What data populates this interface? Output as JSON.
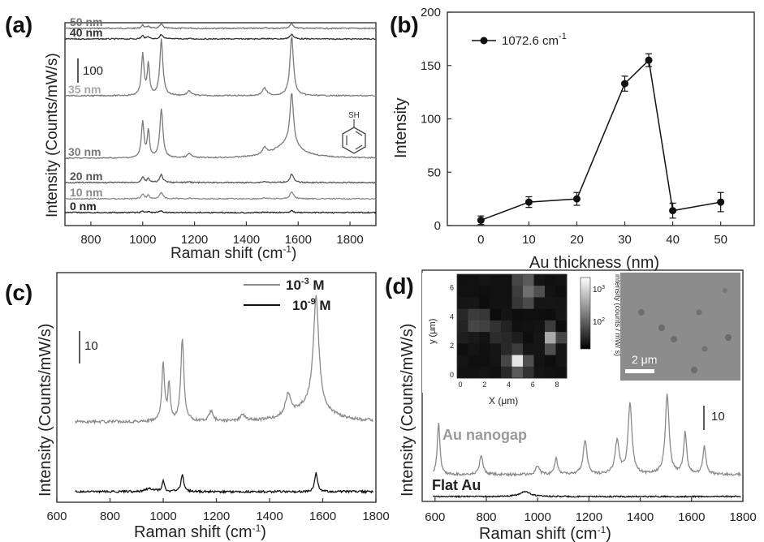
{
  "chart_data": [
    {
      "panel": "(a)",
      "type": "line",
      "xlabel": "Raman shift (cm",
      "xlabel_sup": "-1",
      "xlabel_end": ")",
      "ylabel": "Intensity (Counts/mW/s)",
      "xlim": [
        700,
        1900
      ],
      "xticks": [
        "800",
        "1000",
        "1200",
        "1400",
        "1600",
        "1800"
      ],
      "scalebar_label": "100",
      "molecule_label": "SH",
      "series": [
        {
          "name": "50 nm",
          "color": "#707070",
          "scale": 0.08
        },
        {
          "name": "40 nm",
          "color": "#333333",
          "scale": 0.08
        },
        {
          "name": "35 nm",
          "color": "#7a7a7a",
          "label_color": "#a8a8a8",
          "scale": 1.0
        },
        {
          "name": "30 nm",
          "color": "#7a7a7a",
          "scale": 0.88
        },
        {
          "name": "20 nm",
          "color": "#555555",
          "scale": 0.14
        },
        {
          "name": "10 nm",
          "color": "#8a8a8a",
          "scale": 0.12
        },
        {
          "name": "0 nm",
          "color": "#222222",
          "scale": 0.03
        }
      ]
    },
    {
      "panel": "(b)",
      "type": "line",
      "xlabel": "Au thickness (nm)",
      "ylabel": "Intensity",
      "ylim": [
        0,
        200
      ],
      "xlim": [
        -7,
        57
      ],
      "xticks": [
        0,
        10,
        20,
        30,
        40,
        50
      ],
      "yticks": [
        0,
        50,
        100,
        150,
        200
      ],
      "legend": "1072.6 cm",
      "legend_sup": "-1",
      "x": [
        0,
        10,
        20,
        30,
        35,
        40,
        50
      ],
      "y": [
        5,
        22,
        25,
        133,
        155,
        14,
        22
      ],
      "err": [
        4,
        5,
        6,
        7,
        6,
        7,
        9
      ]
    },
    {
      "panel": "(c)",
      "type": "line",
      "xlabel": "Raman shift (cm",
      "xlabel_sup": "-1",
      "xlabel_end": ")",
      "ylabel": "Intensity (Counts/mW/s)",
      "xlim": [
        600,
        1800
      ],
      "xticks": [
        "600",
        "800",
        "1000",
        "1200",
        "1400",
        "1600",
        "1800"
      ],
      "scalebar_label": "10",
      "series": [
        {
          "name": "10",
          "name_sup": "-3",
          "name_end": " M",
          "color": "#8a8a8a"
        },
        {
          "name": "10",
          "name_sup": "-9",
          "name_end": " M",
          "color": "#111111"
        }
      ]
    },
    {
      "panel": "(d)",
      "type": "line",
      "xlabel": "Raman shift (cm",
      "xlabel_sup": "-1",
      "xlabel_end": ")",
      "ylabel": "Intensity (Counts/mW/s)",
      "xlim": [
        550,
        1800
      ],
      "xticks": [
        "600",
        "800",
        "1000",
        "1200",
        "1400",
        "1600",
        "1800"
      ],
      "scalebar_label": "10",
      "series": [
        {
          "name": "Au nanogap",
          "color": "#8a8a8a"
        },
        {
          "name": "Flat Au",
          "color": "#111111"
        }
      ],
      "inset_map": {
        "xlabel": "X (μm)",
        "ylabel": "y (μm)",
        "xticks": [
          "0",
          "2",
          "4",
          "6",
          "8"
        ],
        "yticks": [
          "0",
          "2",
          "4",
          "6"
        ],
        "colorbar_label": "intensity (counts / mW/ s)",
        "colorbar_ticks": [
          "10",
          "10"
        ],
        "colorbar_sups": [
          "3",
          "2"
        ]
      },
      "inset_image": {
        "scalebar_label": "2 μm"
      }
    }
  ]
}
